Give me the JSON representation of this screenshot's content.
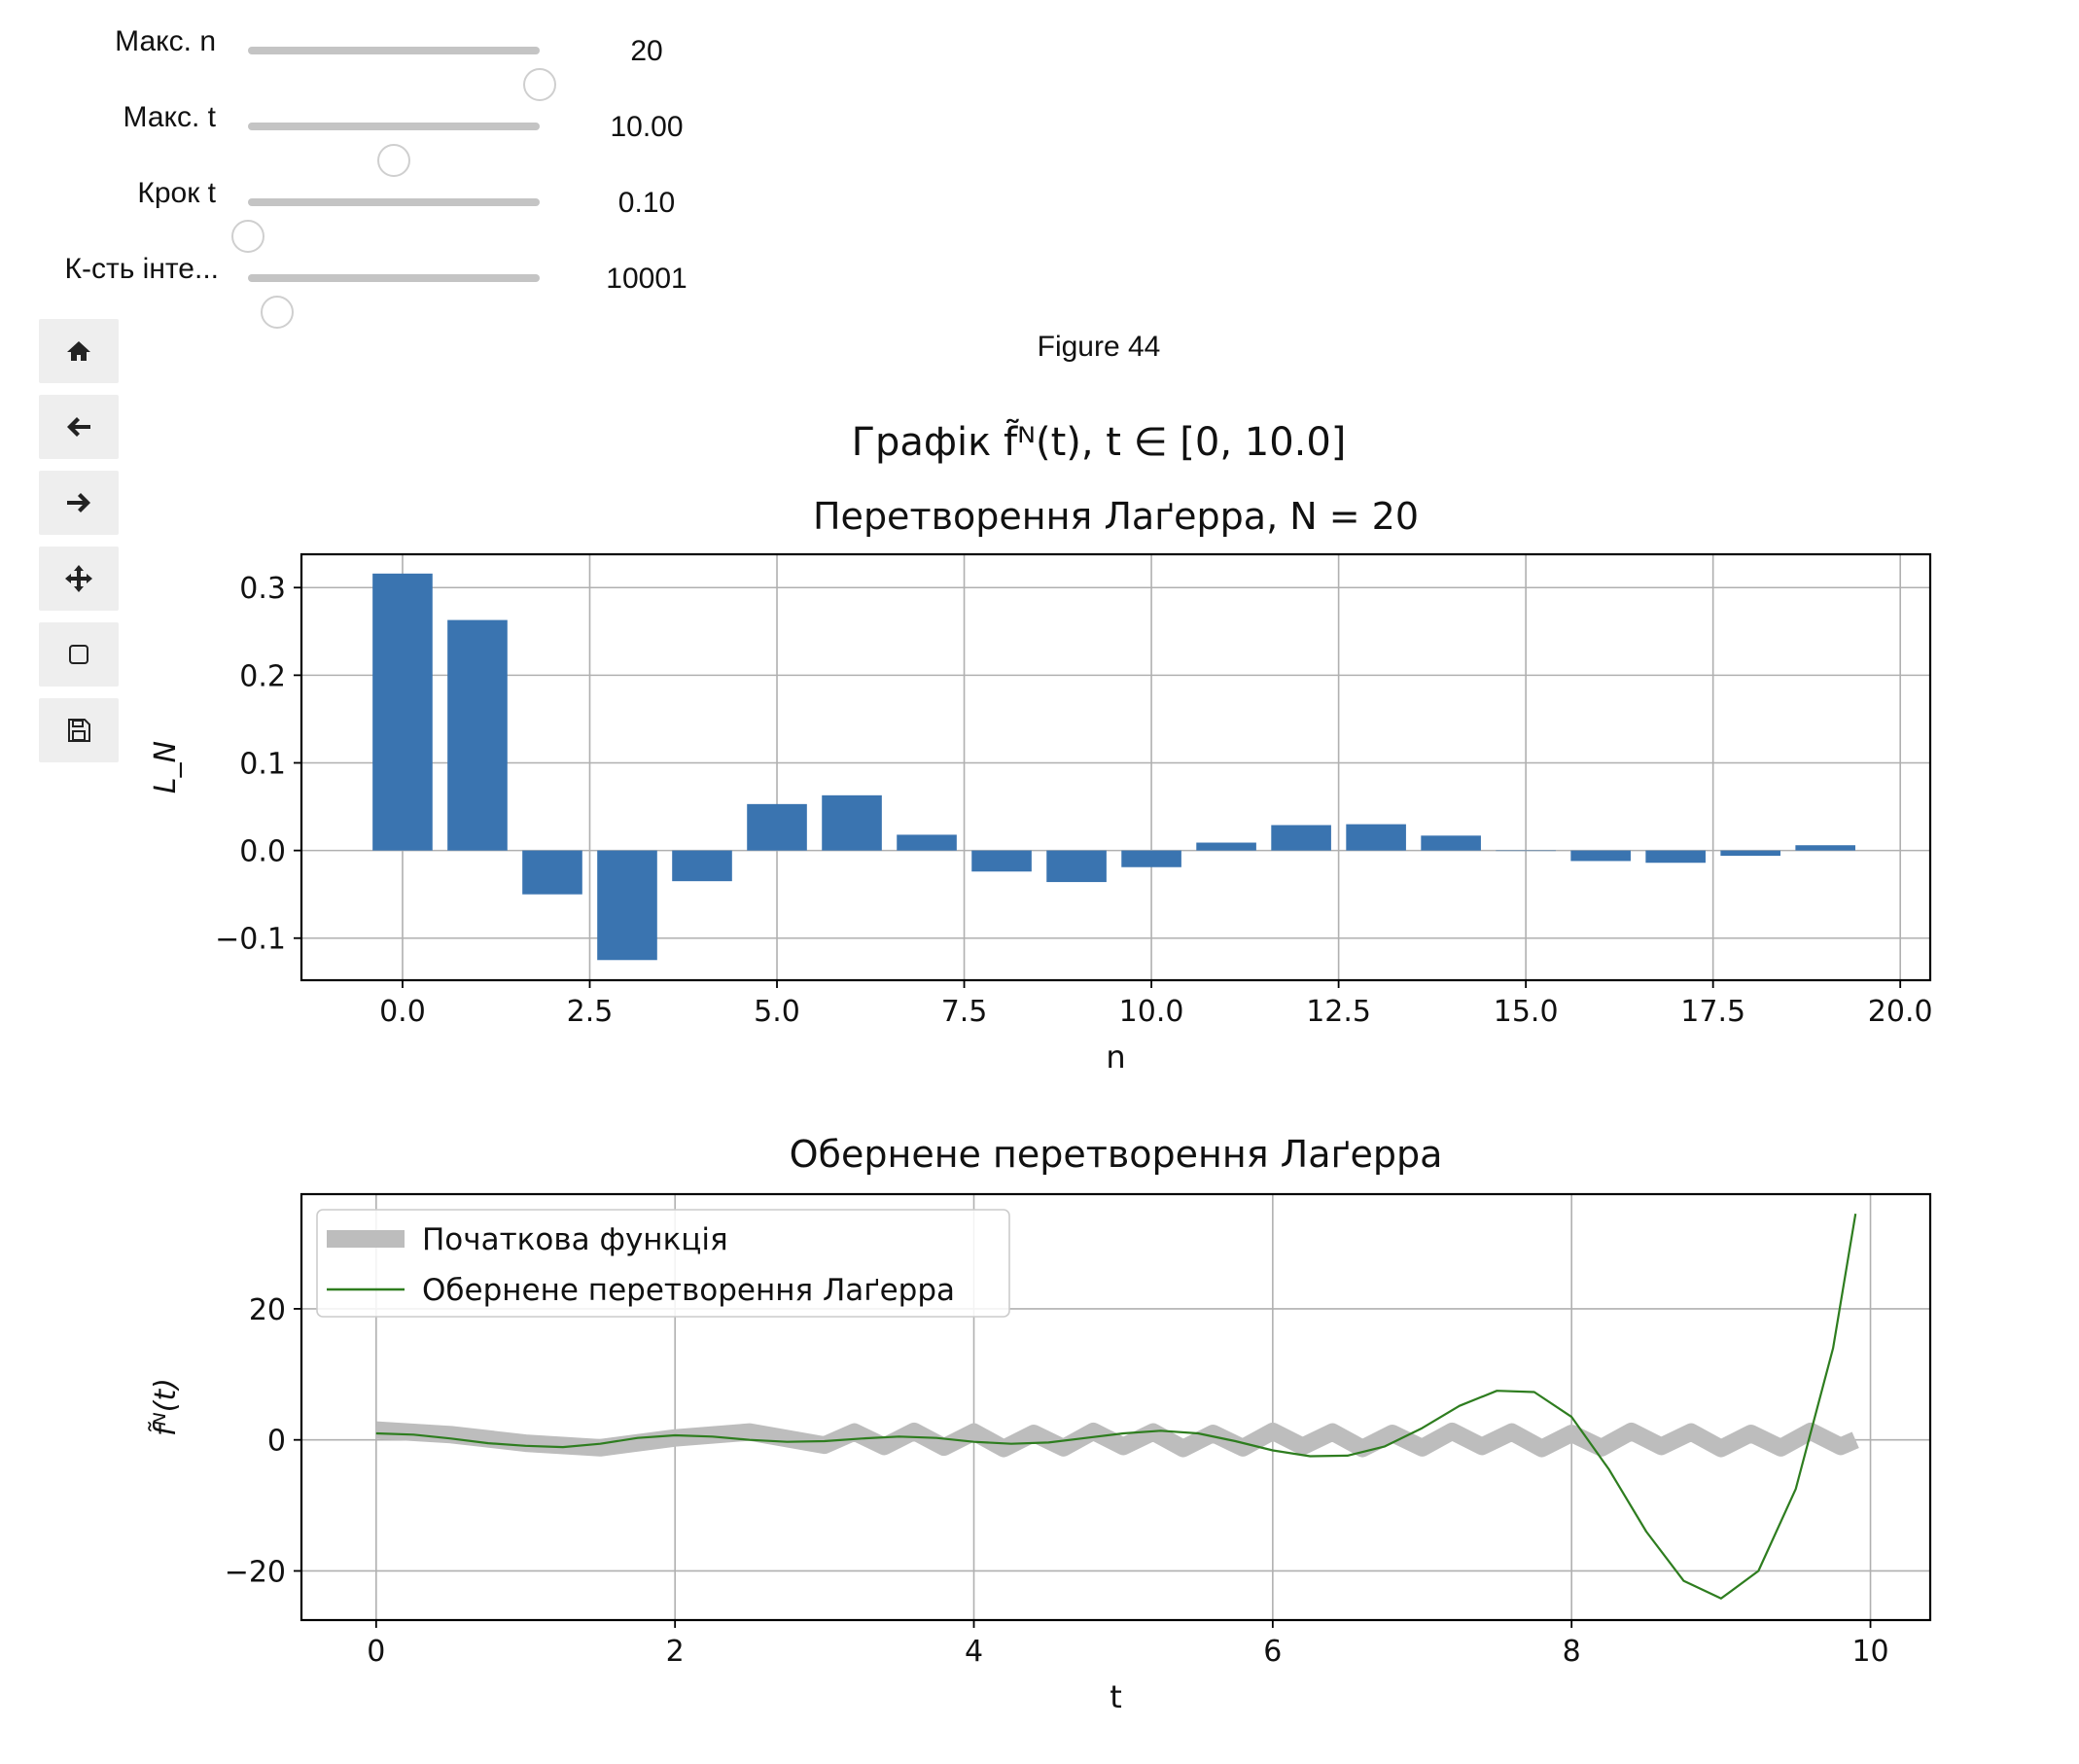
{
  "widgets": {
    "sliders": [
      {
        "label": "Макс. n",
        "value_text": "20",
        "fraction": 1.0
      },
      {
        "label": "Макс. t",
        "value_text": "10.00",
        "fraction": 0.5
      },
      {
        "label": "Крок t",
        "value_text": "0.10",
        "fraction": 0.0
      },
      {
        "label": "К-сть інте...",
        "value_text": "10001",
        "fraction": 0.1
      }
    ]
  },
  "toolbar": {
    "buttons": [
      "home-icon",
      "back-arrow-icon",
      "forward-arrow-icon",
      "pan-move-icon",
      "zoom-rect-icon",
      "save-disk-icon"
    ]
  },
  "figure_label": "Figure 44",
  "suptitle": "Графік f̃ᴺ(t), t ∈ [0, 10.0]",
  "chart_data": [
    {
      "type": "bar",
      "title": "Перетворення Лаґерра, N = 20",
      "xlabel": "n",
      "ylabel": "L_N",
      "x": [
        0,
        1,
        2,
        3,
        4,
        5,
        6,
        7,
        8,
        9,
        10,
        11,
        12,
        13,
        14,
        15,
        16,
        17,
        18,
        19
      ],
      "values": [
        0.316,
        0.263,
        -0.05,
        -0.125,
        -0.035,
        0.053,
        0.063,
        0.018,
        -0.024,
        -0.036,
        -0.019,
        0.009,
        0.029,
        0.03,
        0.017,
        0.0,
        -0.012,
        -0.014,
        -0.006,
        0.006
      ],
      "xlim": [
        -1.35,
        20.4
      ],
      "ylim": [
        -0.148,
        0.338
      ],
      "xticks": [
        0.0,
        2.5,
        5.0,
        7.5,
        10.0,
        12.5,
        15.0,
        17.5,
        20.0
      ],
      "xtick_labels": [
        "0.0",
        "2.5",
        "5.0",
        "7.5",
        "10.0",
        "12.5",
        "15.0",
        "17.5",
        "20.0"
      ],
      "yticks": [
        -0.1,
        0.0,
        0.1,
        0.2,
        0.3
      ],
      "ytick_labels": [
        "−0.1",
        "0.0",
        "0.1",
        "0.2",
        "0.3"
      ],
      "grid": true,
      "color": "#3a74b0"
    },
    {
      "type": "line",
      "title": "Обернене перетворення Лаґерра",
      "xlabel": "t",
      "ylabel": "f̃ᴺ(t)",
      "xlim": [
        -0.5,
        10.4
      ],
      "ylim": [
        -27.5,
        37.5
      ],
      "xticks": [
        0,
        2,
        4,
        6,
        8,
        10
      ],
      "xtick_labels": [
        "0",
        "2",
        "4",
        "6",
        "8",
        "10"
      ],
      "yticks": [
        -20,
        0,
        20
      ],
      "ytick_labels": [
        "−20",
        "0",
        "20"
      ],
      "grid": true,
      "legend_position": "upper-left",
      "series": [
        {
          "name": "Початкова функція",
          "color": "#bdbdbd",
          "x": [
            0.0,
            0.5,
            1.0,
            1.5,
            2.0,
            2.5,
            3.0,
            3.2,
            3.4,
            3.6,
            3.8,
            4.0,
            4.2,
            4.4,
            4.6,
            4.8,
            5.0,
            5.2,
            5.4,
            5.6,
            5.8,
            6.0,
            6.2,
            6.4,
            6.6,
            6.8,
            7.0,
            7.2,
            7.4,
            7.6,
            7.8,
            8.0,
            8.2,
            8.4,
            8.6,
            8.8,
            9.0,
            9.2,
            9.4,
            9.6,
            9.8,
            9.9
          ],
          "y": [
            1.5,
            0.8,
            -0.5,
            -1.2,
            0.3,
            1.2,
            -0.8,
            1.2,
            -1.0,
            1.3,
            -1.1,
            1.2,
            -1.3,
            1.0,
            -1.2,
            1.3,
            -1.0,
            1.2,
            -1.3,
            1.0,
            -1.2,
            1.3,
            -1.0,
            1.2,
            -1.3,
            1.0,
            -1.2,
            1.3,
            -1.0,
            1.2,
            -1.3,
            1.0,
            -1.2,
            1.3,
            -1.0,
            1.2,
            -1.3,
            1.0,
            -1.2,
            1.3,
            -1.0,
            0.0
          ],
          "line_width": 18
        },
        {
          "name": "Обернене перетворення Лаґерра",
          "color": "#2e7d1f",
          "x": [
            0.0,
            0.25,
            0.5,
            0.75,
            1.0,
            1.25,
            1.5,
            1.75,
            2.0,
            2.25,
            2.5,
            2.75,
            3.0,
            3.25,
            3.5,
            3.75,
            4.0,
            4.25,
            4.5,
            4.75,
            5.0,
            5.25,
            5.5,
            5.75,
            6.0,
            6.25,
            6.5,
            6.75,
            7.0,
            7.25,
            7.5,
            7.75,
            8.0,
            8.25,
            8.5,
            8.75,
            9.0,
            9.25,
            9.5,
            9.75,
            9.9
          ],
          "y": [
            1.0,
            0.8,
            0.2,
            -0.5,
            -0.9,
            -1.1,
            -0.6,
            0.3,
            0.7,
            0.5,
            0.0,
            -0.3,
            -0.2,
            0.2,
            0.5,
            0.3,
            -0.3,
            -0.6,
            -0.4,
            0.3,
            1.0,
            1.4,
            1.0,
            -0.2,
            -1.6,
            -2.5,
            -2.4,
            -1.0,
            1.8,
            5.2,
            7.5,
            7.3,
            3.5,
            -4.5,
            -14.0,
            -21.5,
            -24.2,
            -20.0,
            -7.5,
            14.0,
            34.5
          ],
          "line_width": 2.2
        }
      ]
    }
  ]
}
